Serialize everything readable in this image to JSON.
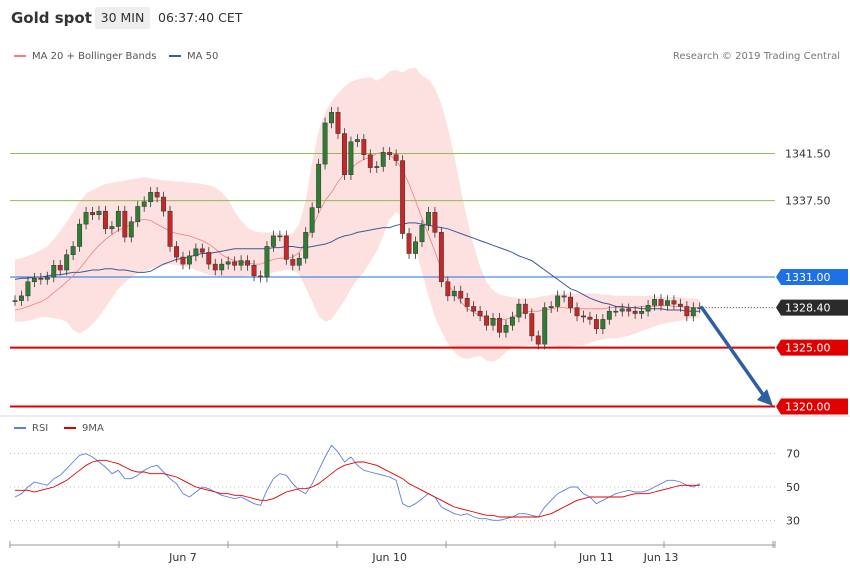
{
  "header": {
    "title": "Gold spot",
    "interval": "30 MIN",
    "time": "06:37:40 CET"
  },
  "legend": [
    {
      "label": "MA 20 + Bollinger Bands",
      "color": "#f08080"
    },
    {
      "label": "MA 50",
      "color": "#3c5a96"
    }
  ],
  "credit": "Research © 2019 Trading Central",
  "rsi_legend": [
    {
      "label": "RSI",
      "color": "#5b7fe0"
    },
    {
      "label": "9MA",
      "color": "#e00000"
    }
  ],
  "chart_data": {
    "type": "candlestick",
    "price_axis": {
      "min": 1318.0,
      "max": 1352.0
    },
    "x_labels": [
      "Jun 7",
      "Jun 10",
      "Jun 11",
      "Jun 13"
    ],
    "x_label_index": [
      26,
      58,
      90,
      100
    ],
    "current_price": {
      "value": 1328.4,
      "label": "1328.40"
    },
    "levels": [
      {
        "value": 1341.5,
        "label": "1341.50",
        "kind": "resistance",
        "color": "#8cc152"
      },
      {
        "value": 1337.5,
        "label": "1337.50",
        "kind": "resistance",
        "color": "#8cc152"
      },
      {
        "value": 1331.0,
        "label": "1331.00",
        "kind": "pivot",
        "color": "#1f6fe5"
      },
      {
        "value": 1325.0,
        "label": "1325.00",
        "kind": "support",
        "color": "#e00000"
      },
      {
        "value": 1320.0,
        "label": "1320.00",
        "kind": "support",
        "color": "#e00000"
      }
    ],
    "forecast_arrow": {
      "from": 1328.4,
      "to": 1320.3,
      "color": "#2e5fa3"
    },
    "close": [
      1329.0,
      1329.4,
      1330.6,
      1330.9,
      1330.8,
      1331.0,
      1332.0,
      1331.6,
      1332.9,
      1333.6,
      1335.5,
      1336.5,
      1336.3,
      1336.6,
      1335.1,
      1335.3,
      1336.6,
      1334.4,
      1335.7,
      1337.0,
      1337.4,
      1338.2,
      1337.8,
      1336.6,
      1333.6,
      1332.7,
      1332.1,
      1332.8,
      1333.4,
      1333.1,
      1332.1,
      1331.6,
      1332.1,
      1332.3,
      1332.0,
      1332.4,
      1332.0,
      1331.1,
      1331.0,
      1333.6,
      1334.5,
      1334.5,
      1332.5,
      1332.0,
      1332.6,
      1334.8,
      1336.9,
      1340.6,
      1344.1,
      1345.0,
      1343.2,
      1339.7,
      1342.5,
      1342.7,
      1341.4,
      1340.3,
      1340.4,
      1341.6,
      1341.4,
      1340.9,
      1334.7,
      1333.0,
      1334.0,
      1335.4,
      1336.5,
      1334.8,
      1330.6,
      1329.4,
      1329.8,
      1329.2,
      1328.5,
      1328.1,
      1327.7,
      1326.9,
      1327.5,
      1326.3,
      1326.9,
      1327.6,
      1328.7,
      1327.9,
      1326.0,
      1325.3,
      1328.4,
      1328.5,
      1329.4,
      1329.3,
      1328.4,
      1327.7,
      1327.6,
      1327.4,
      1326.6,
      1327.4,
      1328.1,
      1328.1,
      1328.3,
      1328.1,
      1327.9,
      1328.1,
      1328.6,
      1329.1,
      1328.6,
      1329.0,
      1328.7,
      1328.5,
      1327.7,
      1328.4,
      1328.4
    ],
    "ma20": [
      1328.2,
      1328.3,
      1328.5,
      1328.7,
      1328.9,
      1329.2,
      1329.7,
      1330.1,
      1330.6,
      1331.1,
      1331.7,
      1332.4,
      1333.1,
      1333.7,
      1334.2,
      1334.6,
      1335.0,
      1335.2,
      1335.5,
      1335.8,
      1335.9,
      1335.8,
      1335.5,
      1335.2,
      1334.9,
      1334.7,
      1334.6,
      1334.5,
      1334.3,
      1334.1,
      1333.8,
      1333.4,
      1332.9,
      1332.6,
      1332.4,
      1332.3,
      1332.2,
      1332.1,
      1332.1,
      1332.3,
      1332.5,
      1332.6,
      1332.6,
      1332.7,
      1333.1,
      1334.0,
      1335.2,
      1336.4,
      1337.5,
      1338.2,
      1339.1,
      1339.8,
      1340.2,
      1340.7,
      1341.0,
      1341.2,
      1341.5,
      1341.6,
      1341.4,
      1340.9,
      1340.1,
      1338.9,
      1337.5,
      1336.0,
      1334.6,
      1333.2,
      1331.6,
      1330.4,
      1329.6,
      1328.9,
      1328.3,
      1328.0,
      1327.7,
      1327.5,
      1327.4,
      1327.4,
      1327.4,
      1327.6,
      1327.9,
      1328.0,
      1328.1,
      1328.1,
      1328.2,
      1328.3,
      1328.4,
      1328.4,
      1328.3,
      1328.3,
      1328.3,
      1328.3,
      1328.3,
      1328.3,
      1328.4,
      1328.4,
      1328.4,
      1328.4,
      1328.4,
      1328.5,
      1328.5,
      1328.5,
      1328.6,
      1328.6,
      1328.5,
      1328.5,
      1328.4,
      1328.4,
      1328.4
    ],
    "ma50": [
      1330.8,
      1330.9,
      1330.9,
      1331.0,
      1331.0,
      1331.1,
      1331.2,
      1331.2,
      1331.3,
      1331.4,
      1331.4,
      1331.5,
      1331.6,
      1331.6,
      1331.7,
      1331.7,
      1331.6,
      1331.6,
      1331.5,
      1331.4,
      1331.4,
      1331.5,
      1331.8,
      1332.1,
      1332.3,
      1332.5,
      1332.6,
      1332.7,
      1332.9,
      1333.0,
      1333.0,
      1333.1,
      1333.2,
      1333.3,
      1333.4,
      1333.4,
      1333.4,
      1333.4,
      1333.4,
      1333.4,
      1333.5,
      1333.5,
      1333.6,
      1333.6,
      1333.5,
      1333.5,
      1333.6,
      1333.7,
      1333.8,
      1334.0,
      1334.3,
      1334.5,
      1334.6,
      1334.8,
      1334.9,
      1335.0,
      1335.1,
      1335.2,
      1335.2,
      1335.4,
      1335.5,
      1335.6,
      1335.6,
      1335.5,
      1335.4,
      1335.3,
      1335.2,
      1335.1,
      1334.9,
      1334.7,
      1334.5,
      1334.3,
      1334.1,
      1333.9,
      1333.7,
      1333.5,
      1333.3,
      1333.1,
      1332.8,
      1332.6,
      1332.4,
      1332.0,
      1331.6,
      1331.2,
      1330.8,
      1330.4,
      1330.0,
      1329.8,
      1329.5,
      1329.2,
      1329.0,
      1328.8,
      1328.7,
      1328.5,
      1328.5,
      1328.4,
      1328.4,
      1328.3,
      1328.3,
      1328.3,
      1328.3,
      1328.2,
      1328.2,
      1328.2,
      1328.1,
      1328.1,
      1328.1
    ],
    "bb_upper": [
      1332.5,
      1332.6,
      1332.8,
      1333.0,
      1333.3,
      1333.6,
      1334.2,
      1334.9,
      1335.7,
      1336.5,
      1337.4,
      1338.1,
      1338.4,
      1338.7,
      1338.9,
      1339.0,
      1339.1,
      1339.2,
      1339.3,
      1339.4,
      1339.5,
      1339.4,
      1339.3,
      1339.2,
      1339.2,
      1339.1,
      1339.1,
      1339.0,
      1339.0,
      1338.9,
      1338.8,
      1338.6,
      1338.2,
      1337.6,
      1336.6,
      1335.8,
      1335.2,
      1334.9,
      1334.8,
      1334.8,
      1334.8,
      1334.7,
      1334.6,
      1334.7,
      1335.5,
      1337.5,
      1340.8,
      1343.4,
      1345.0,
      1345.9,
      1346.6,
      1347.2,
      1347.6,
      1347.8,
      1347.9,
      1348.0,
      1347.7,
      1348.0,
      1348.5,
      1348.6,
      1348.4,
      1348.7,
      1348.8,
      1348.1,
      1347.8,
      1347.1,
      1345.7,
      1343.7,
      1341.3,
      1338.5,
      1335.9,
      1333.7,
      1331.9,
      1330.6,
      1329.9,
      1329.5,
      1329.4,
      1329.3,
      1329.2,
      1329.2,
      1329.2,
      1329.3,
      1329.4,
      1329.5,
      1329.6,
      1329.6,
      1329.6,
      1329.6,
      1329.6,
      1329.6,
      1329.6,
      1329.5,
      1329.5,
      1329.4,
      1329.4,
      1329.4,
      1329.4,
      1329.4,
      1329.4,
      1329.4,
      1329.3,
      1329.3,
      1329.3,
      1329.3,
      1329.2,
      1329.2,
      1329.1
    ],
    "bb_lower": [
      1327.2,
      1327.2,
      1327.3,
      1327.4,
      1327.6,
      1327.6,
      1327.5,
      1327.4,
      1327.2,
      1326.5,
      1326.2,
      1326.5,
      1327.0,
      1327.6,
      1328.4,
      1329.2,
      1330.0,
      1330.5,
      1331.0,
      1331.3,
      1331.5,
      1331.7,
      1331.9,
      1332.0,
      1332.1,
      1332.0,
      1331.9,
      1331.8,
      1331.6,
      1331.4,
      1331.2,
      1331.1,
      1331.0,
      1331.0,
      1331.0,
      1331.0,
      1331.1,
      1331.2,
      1331.2,
      1331.3,
      1331.4,
      1331.5,
      1331.6,
      1331.6,
      1331.2,
      1330.1,
      1328.9,
      1327.7,
      1327.2,
      1327.4,
      1328.2,
      1329.0,
      1330.0,
      1330.8,
      1331.4,
      1332.3,
      1333.2,
      1334.5,
      1335.9,
      1336.5,
      1336.1,
      1334.9,
      1333.4,
      1331.4,
      1329.4,
      1327.6,
      1326.4,
      1325.4,
      1324.6,
      1324.2,
      1324.0,
      1324.2,
      1324.3,
      1323.9,
      1323.8,
      1324.1,
      1324.6,
      1325.0,
      1325.1,
      1325.2,
      1325.2,
      1325.2,
      1325.2,
      1325.2,
      1325.1,
      1325.1,
      1325.1,
      1325.2,
      1325.2,
      1325.4,
      1325.6,
      1325.7,
      1325.8,
      1325.8,
      1325.9,
      1326.0,
      1326.2,
      1326.4,
      1326.6,
      1326.8,
      1327.0,
      1327.1,
      1327.2,
      1327.3,
      1327.4,
      1327.5,
      1327.6
    ],
    "rsi_axis": {
      "min": 20,
      "max": 80,
      "ticks": [
        30,
        50,
        70
      ]
    },
    "rsi": [
      44,
      46,
      50,
      53,
      52,
      51,
      55,
      57,
      61,
      65,
      69,
      70,
      68,
      65,
      62,
      58,
      60,
      55,
      55,
      57,
      60,
      62,
      63,
      59,
      55,
      52,
      46,
      44,
      47,
      50,
      49,
      47,
      45,
      44,
      43,
      44,
      42,
      40,
      39,
      48,
      55,
      58,
      57,
      52,
      48,
      46,
      52,
      60,
      68,
      75,
      71,
      65,
      68,
      63,
      60,
      59,
      58,
      57,
      56,
      54,
      40,
      38,
      40,
      43,
      46,
      44,
      38,
      36,
      34,
      33,
      34,
      32,
      31,
      31,
      30,
      30,
      31,
      32,
      34,
      34,
      33,
      32,
      38,
      42,
      46,
      48,
      50,
      50,
      46,
      44,
      40,
      42,
      44,
      46,
      47,
      48,
      47,
      47,
      48,
      50,
      52,
      54,
      54,
      53,
      51,
      50,
      52
    ],
    "rsi_ma": [
      48,
      48,
      48,
      47,
      48,
      49,
      50,
      52,
      54,
      57,
      60,
      63,
      65,
      66,
      66,
      65,
      64,
      62,
      60,
      59,
      59,
      58,
      58,
      58,
      57,
      56,
      54,
      52,
      50,
      49,
      48,
      47,
      46,
      46,
      45,
      45,
      44,
      43,
      42,
      42,
      43,
      45,
      47,
      48,
      49,
      49,
      50,
      52,
      55,
      58,
      61,
      63,
      64,
      65,
      65,
      64,
      63,
      61,
      59,
      57,
      55,
      52,
      50,
      48,
      46,
      44,
      42,
      40,
      38,
      37,
      36,
      35,
      34,
      33,
      33,
      32,
      32,
      32,
      32,
      32,
      32,
      32,
      33,
      34,
      36,
      38,
      40,
      42,
      43,
      44,
      44,
      44,
      44,
      44,
      44,
      45,
      46,
      46,
      46,
      47,
      48,
      49,
      50,
      51,
      51,
      51,
      51
    ]
  }
}
